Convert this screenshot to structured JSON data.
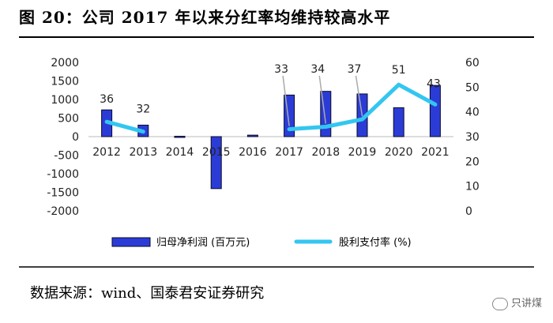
{
  "title": "图 20：公司 2017 年以来分红率均维持较高水平",
  "source": "数据来源：wind、国泰君安证券研究",
  "watermark": "只讲煤",
  "chart_data": {
    "type": "bar+line",
    "categories": [
      "2012",
      "2013",
      "2014",
      "2015",
      "2016",
      "2017",
      "2018",
      "2019",
      "2020",
      "2021"
    ],
    "series": [
      {
        "name": "归母净利润 (百万元)",
        "type": "bar",
        "axis": "left",
        "values": [
          720,
          310,
          10,
          -1400,
          40,
          1120,
          1220,
          1150,
          780,
          1380
        ]
      },
      {
        "name": "股利支付率 (%)",
        "type": "line",
        "axis": "right",
        "values": [
          36,
          32,
          null,
          null,
          null,
          33,
          34,
          37,
          51,
          43
        ]
      }
    ],
    "data_labels": [
      "36",
      "32",
      "33",
      "34",
      "37",
      "51",
      "43"
    ],
    "y_left": {
      "ticks": [
        "2000",
        "1500",
        "1000",
        "500",
        "0",
        "-500",
        "-1000",
        "-1500",
        "-2000"
      ],
      "ylim": [
        -2000,
        2000
      ]
    },
    "y_right": {
      "ticks": [
        "60",
        "50",
        "40",
        "30",
        "20",
        "10",
        "0"
      ],
      "ylim": [
        0,
        60
      ]
    },
    "colors": {
      "bar": "#2b3cd6",
      "bar_edge": "#0a0a2a",
      "line": "#33c6f0",
      "leader": "#aaaaaa"
    },
    "legend_position": "bottom"
  }
}
